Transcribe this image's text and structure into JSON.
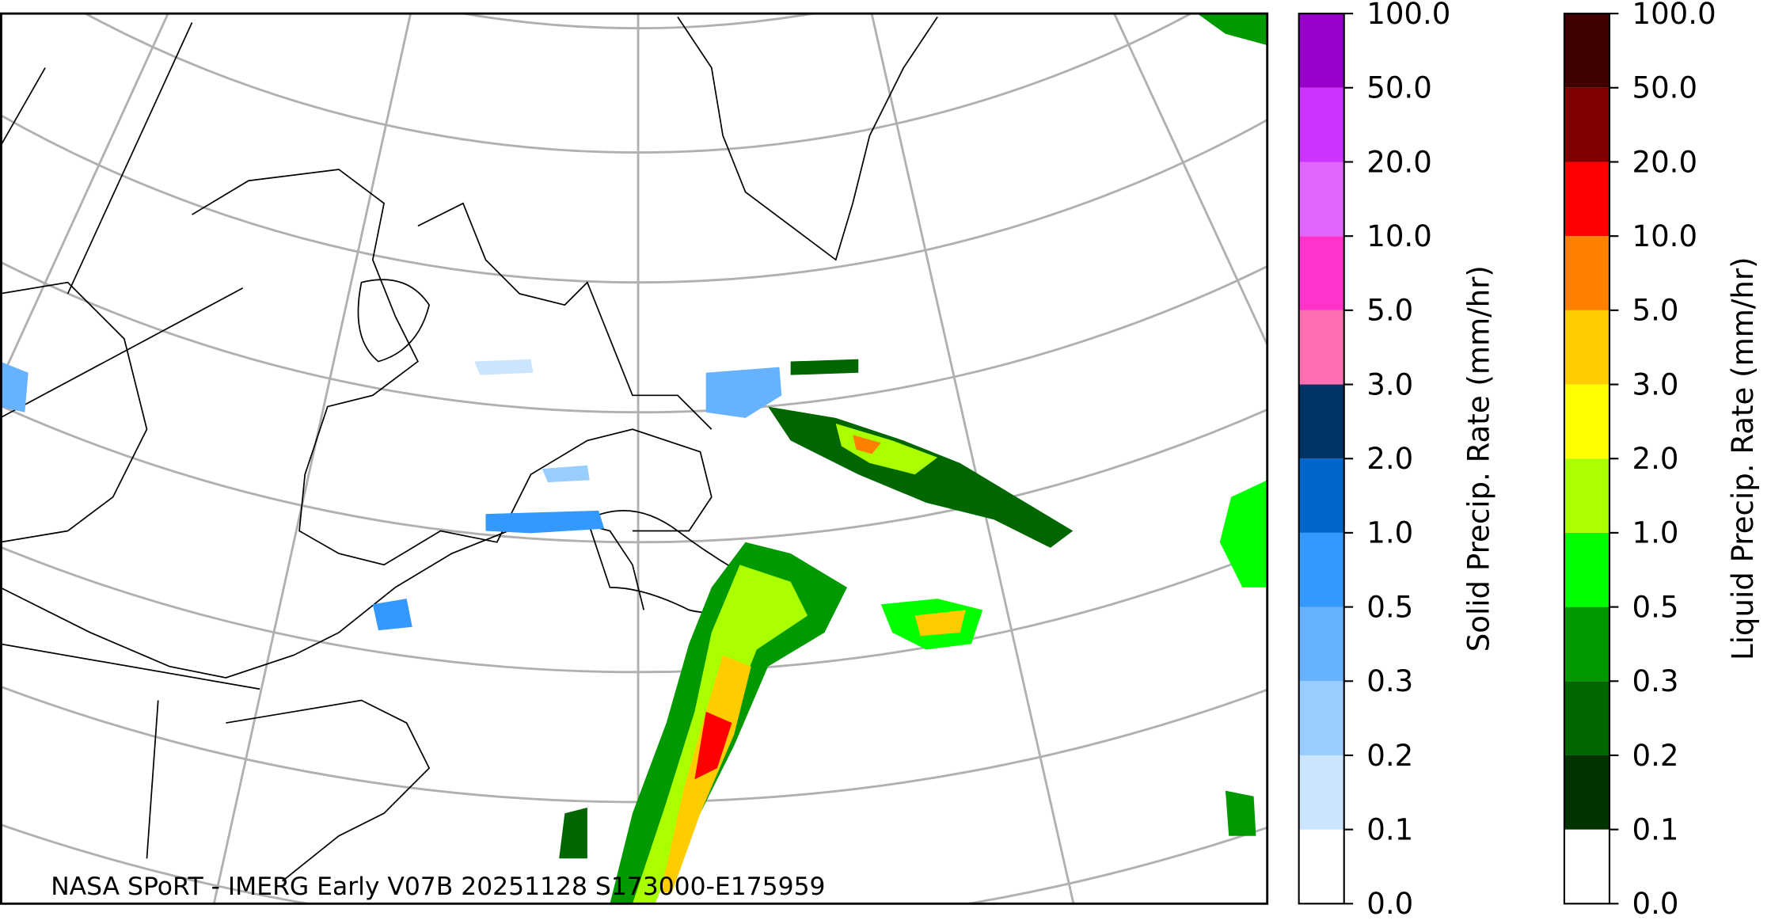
{
  "map": {
    "annotation": "NASA SPoRT - IMERG Early V07B 20251128 S173000-E175959"
  },
  "colorbars": [
    {
      "label": "Solid Precip. Rate (mm/hr)",
      "ticks": [
        {
          "value": 0,
          "label": "0.0"
        },
        {
          "value": 0.1,
          "label": "0.1"
        },
        {
          "value": 0.2,
          "label": "0.2"
        },
        {
          "value": 0.3,
          "label": "0.3"
        },
        {
          "value": 0.5,
          "label": "0.5"
        },
        {
          "value": 1,
          "label": "1.0"
        },
        {
          "value": 2,
          "label": "2.0"
        },
        {
          "value": 3,
          "label": "3.0"
        },
        {
          "value": 5,
          "label": "5.0"
        },
        {
          "value": 10,
          "label": "10.0"
        },
        {
          "value": 20,
          "label": "20.0"
        },
        {
          "value": 50,
          "label": "50.0"
        },
        {
          "value": 100,
          "label": "100.0"
        }
      ],
      "colors": [
        "#ffffff",
        "#cce5ff",
        "#99ccff",
        "#66b2ff",
        "#3399ff",
        "#0066cc",
        "#003366",
        "#ff6eb0",
        "#ff33cc",
        "#e066ff",
        "#cc33ff",
        "#9900cc"
      ]
    },
    {
      "label": "Liquid Precip. Rate (mm/hr)",
      "ticks": [
        {
          "value": 0,
          "label": "0.0"
        },
        {
          "value": 0.1,
          "label": "0.1"
        },
        {
          "value": 0.2,
          "label": "0.2"
        },
        {
          "value": 0.3,
          "label": "0.3"
        },
        {
          "value": 0.5,
          "label": "0.5"
        },
        {
          "value": 1,
          "label": "1.0"
        },
        {
          "value": 2,
          "label": "2.0"
        },
        {
          "value": 3,
          "label": "3.0"
        },
        {
          "value": 5,
          "label": "5.0"
        },
        {
          "value": 10,
          "label": "10.0"
        },
        {
          "value": 20,
          "label": "20.0"
        },
        {
          "value": 50,
          "label": "50.0"
        },
        {
          "value": 100,
          "label": "100.0"
        }
      ],
      "colors": [
        "#ffffff",
        "#003300",
        "#006600",
        "#009900",
        "#00ff00",
        "#aaff00",
        "#ffff00",
        "#ffcc00",
        "#ff8000",
        "#ff0000",
        "#800000",
        "#400000"
      ]
    }
  ]
}
